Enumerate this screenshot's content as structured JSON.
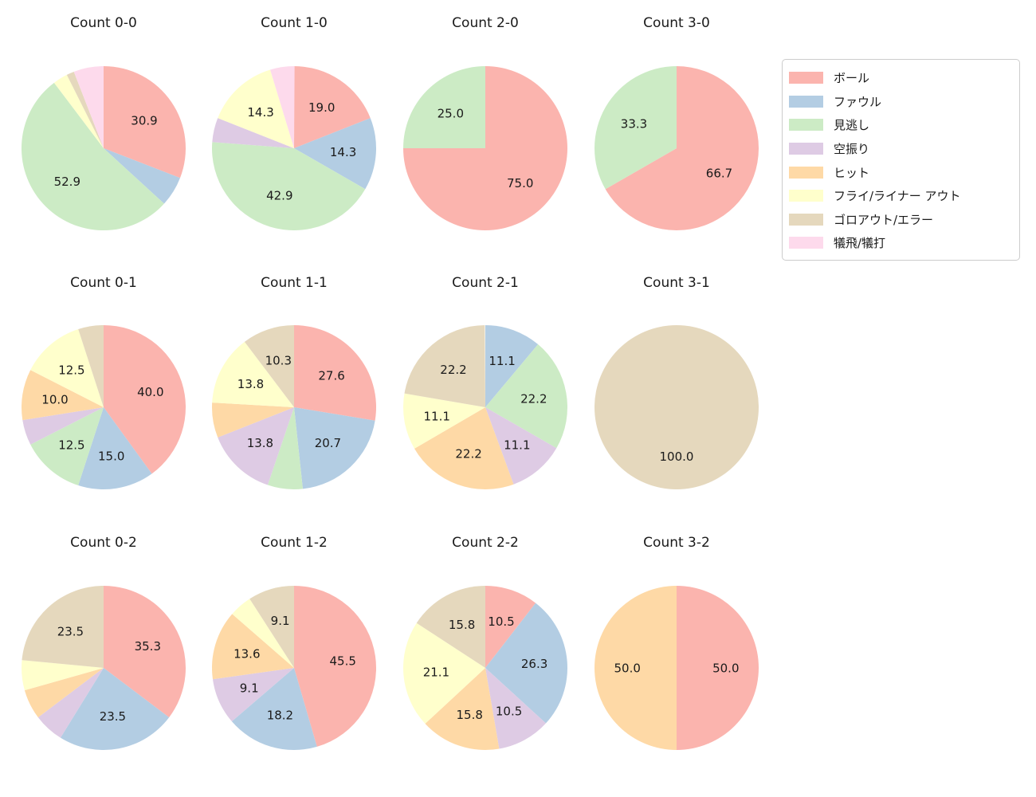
{
  "figure": {
    "background": "#ffffff"
  },
  "legend": {
    "items": [
      {
        "label": "ボール",
        "color": "#fbb4ae"
      },
      {
        "label": "ファウル",
        "color": "#b3cde3"
      },
      {
        "label": "見逃し",
        "color": "#ccebc5"
      },
      {
        "label": "空振り",
        "color": "#decbe4"
      },
      {
        "label": "ヒット",
        "color": "#fed9a6"
      },
      {
        "label": "フライ/ライナー アウト",
        "color": "#ffffcc"
      },
      {
        "label": "ゴロアウト/エラー",
        "color": "#e5d8bd"
      },
      {
        "label": "犠飛/犠打",
        "color": "#fddaec"
      }
    ]
  },
  "chart_data": {
    "type": "pie",
    "grid": {
      "rows": 3,
      "cols": 4
    },
    "start_angle_deg": 90,
    "clockwise": true,
    "pct_label_distance": 0.6,
    "value_unit": "percent",
    "legend_position": "upper right",
    "charts": [
      {
        "title": "Count 0-0",
        "row": 0,
        "col": 0,
        "slices": [
          {
            "category": "ボール",
            "value": 30.9,
            "labeled": true
          },
          {
            "category": "ファウル",
            "value": 5.9,
            "labeled": false
          },
          {
            "category": "見逃し",
            "value": 52.9,
            "labeled": true
          },
          {
            "category": "フライ/ライナー アウト",
            "value": 2.9,
            "labeled": false
          },
          {
            "category": "ゴロアウト/エラー",
            "value": 1.5,
            "labeled": false
          },
          {
            "category": "犠飛/犠打",
            "value": 5.9,
            "labeled": false
          }
        ]
      },
      {
        "title": "Count 1-0",
        "row": 0,
        "col": 1,
        "slices": [
          {
            "category": "ボール",
            "value": 19.0,
            "labeled": true
          },
          {
            "category": "ファウル",
            "value": 14.3,
            "labeled": true
          },
          {
            "category": "見逃し",
            "value": 42.9,
            "labeled": true
          },
          {
            "category": "空振り",
            "value": 4.8,
            "labeled": false
          },
          {
            "category": "フライ/ライナー アウト",
            "value": 14.3,
            "labeled": true
          },
          {
            "category": "犠飛/犠打",
            "value": 4.8,
            "labeled": false
          }
        ]
      },
      {
        "title": "Count 2-0",
        "row": 0,
        "col": 2,
        "slices": [
          {
            "category": "ボール",
            "value": 75.0,
            "labeled": true
          },
          {
            "category": "見逃し",
            "value": 25.0,
            "labeled": true
          }
        ]
      },
      {
        "title": "Count 3-0",
        "row": 0,
        "col": 3,
        "slices": [
          {
            "category": "ボール",
            "value": 66.7,
            "labeled": true
          },
          {
            "category": "見逃し",
            "value": 33.3,
            "labeled": true
          }
        ]
      },
      {
        "title": "Count 0-1",
        "row": 1,
        "col": 0,
        "slices": [
          {
            "category": "ボール",
            "value": 40.0,
            "labeled": true
          },
          {
            "category": "ファウル",
            "value": 15.0,
            "labeled": true
          },
          {
            "category": "見逃し",
            "value": 12.5,
            "labeled": true
          },
          {
            "category": "空振り",
            "value": 5.0,
            "labeled": false
          },
          {
            "category": "ヒット",
            "value": 10.0,
            "labeled": true
          },
          {
            "category": "フライ/ライナー アウト",
            "value": 12.5,
            "labeled": true
          },
          {
            "category": "ゴロアウト/エラー",
            "value": 5.0,
            "labeled": false
          }
        ]
      },
      {
        "title": "Count 1-1",
        "row": 1,
        "col": 1,
        "slices": [
          {
            "category": "ボール",
            "value": 27.6,
            "labeled": true
          },
          {
            "category": "ファウル",
            "value": 20.7,
            "labeled": true
          },
          {
            "category": "見逃し",
            "value": 6.9,
            "labeled": false
          },
          {
            "category": "空振り",
            "value": 13.8,
            "labeled": true
          },
          {
            "category": "ヒット",
            "value": 6.9,
            "labeled": false
          },
          {
            "category": "フライ/ライナー アウト",
            "value": 13.8,
            "labeled": true
          },
          {
            "category": "ゴロアウト/エラー",
            "value": 10.3,
            "labeled": true
          }
        ]
      },
      {
        "title": "Count 2-1",
        "row": 1,
        "col": 2,
        "slices": [
          {
            "category": "ファウル",
            "value": 11.1,
            "labeled": true
          },
          {
            "category": "見逃し",
            "value": 22.2,
            "labeled": true
          },
          {
            "category": "空振り",
            "value": 11.1,
            "labeled": true
          },
          {
            "category": "ヒット",
            "value": 22.2,
            "labeled": true
          },
          {
            "category": "フライ/ライナー アウト",
            "value": 11.1,
            "labeled": true
          },
          {
            "category": "ゴロアウト/エラー",
            "value": 22.2,
            "labeled": true
          }
        ]
      },
      {
        "title": "Count 3-1",
        "row": 1,
        "col": 3,
        "slices": [
          {
            "category": "ゴロアウト/エラー",
            "value": 100.0,
            "labeled": true
          }
        ]
      },
      {
        "title": "Count 0-2",
        "row": 2,
        "col": 0,
        "slices": [
          {
            "category": "ボール",
            "value": 35.3,
            "labeled": true
          },
          {
            "category": "ファウル",
            "value": 23.5,
            "labeled": true
          },
          {
            "category": "空振り",
            "value": 5.9,
            "labeled": false
          },
          {
            "category": "ヒット",
            "value": 5.9,
            "labeled": false
          },
          {
            "category": "フライ/ライナー アウト",
            "value": 5.9,
            "labeled": false
          },
          {
            "category": "ゴロアウト/エラー",
            "value": 23.5,
            "labeled": true
          }
        ]
      },
      {
        "title": "Count 1-2",
        "row": 2,
        "col": 1,
        "slices": [
          {
            "category": "ボール",
            "value": 45.5,
            "labeled": true
          },
          {
            "category": "ファウル",
            "value": 18.2,
            "labeled": true
          },
          {
            "category": "空振り",
            "value": 9.1,
            "labeled": true
          },
          {
            "category": "ヒット",
            "value": 13.6,
            "labeled": true
          },
          {
            "category": "フライ/ライナー アウト",
            "value": 4.5,
            "labeled": false
          },
          {
            "category": "ゴロアウト/エラー",
            "value": 9.1,
            "labeled": true
          }
        ]
      },
      {
        "title": "Count 2-2",
        "row": 2,
        "col": 2,
        "slices": [
          {
            "category": "ボール",
            "value": 10.5,
            "labeled": true
          },
          {
            "category": "ファウル",
            "value": 26.3,
            "labeled": true
          },
          {
            "category": "空振り",
            "value": 10.5,
            "labeled": true
          },
          {
            "category": "ヒット",
            "value": 15.8,
            "labeled": true
          },
          {
            "category": "フライ/ライナー アウト",
            "value": 21.1,
            "labeled": true
          },
          {
            "category": "ゴロアウト/エラー",
            "value": 15.8,
            "labeled": true
          }
        ]
      },
      {
        "title": "Count 3-2",
        "row": 2,
        "col": 3,
        "slices": [
          {
            "category": "ボール",
            "value": 50.0,
            "labeled": true
          },
          {
            "category": "ヒット",
            "value": 50.0,
            "labeled": true
          }
        ]
      }
    ]
  }
}
